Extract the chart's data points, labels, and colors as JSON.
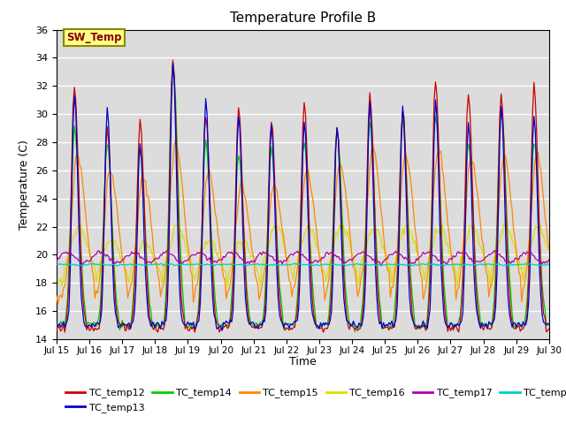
{
  "title": "Temperature Profile B",
  "xlabel": "Time",
  "ylabel": "Temperature (C)",
  "ylim": [
    14,
    36
  ],
  "xlim": [
    0,
    360
  ],
  "bg_color": "#dcdcdc",
  "fig_color": "#ffffff",
  "series_colors": {
    "TC_temp12": "#cc0000",
    "TC_temp13": "#0000cc",
    "TC_temp14": "#00cc00",
    "TC_temp15": "#ff8800",
    "TC_temp16": "#dddd00",
    "TC_temp17": "#aa00aa",
    "TC_temp18": "#00cccc"
  },
  "xtick_labels": [
    "Jul 15",
    "Jul 16",
    "Jul 17",
    "Jul 18",
    "Jul 19",
    "Jul 20",
    "Jul 21",
    "Jul 22",
    "Jul 23",
    "Jul 24",
    "Jul 25",
    "Jul 26",
    "Jul 27",
    "Jul 28",
    "Jul 29",
    "Jul 30"
  ],
  "xtick_positions": [
    0,
    24,
    48,
    72,
    96,
    120,
    144,
    168,
    192,
    216,
    240,
    264,
    288,
    312,
    336,
    360
  ],
  "ytick_positions": [
    14,
    16,
    18,
    20,
    22,
    24,
    26,
    28,
    30,
    32,
    34,
    36
  ],
  "annotation_text": "SW_Temp",
  "annotation_bg": "#ffff88",
  "annotation_border": "#888800",
  "peak_heights_12": [
    32,
    29,
    29.5,
    34,
    30,
    30.4,
    29.5,
    30.6,
    29,
    31.5,
    30.5,
    32.5,
    31.5,
    31.5,
    32
  ],
  "peak_heights_13": [
    31.5,
    30.5,
    28,
    33.8,
    31,
    30,
    29.2,
    29.5,
    29.2,
    30.5,
    30.5,
    31,
    29.5,
    30.5,
    30
  ],
  "peak_heights_14": [
    29,
    28,
    27.5,
    33.5,
    28,
    27.2,
    27.5,
    28,
    28.9,
    29.5,
    29.5,
    30,
    28,
    30.5,
    28
  ],
  "peak_heights_15": [
    27,
    26,
    25.5,
    28,
    25.8,
    25,
    25,
    26,
    26.5,
    27.5,
    27,
    27.5,
    27,
    27,
    27
  ],
  "peak_heights_16": [
    22,
    21,
    21,
    22,
    21,
    21,
    22,
    22,
    22,
    22,
    22,
    22,
    22,
    22,
    22
  ]
}
